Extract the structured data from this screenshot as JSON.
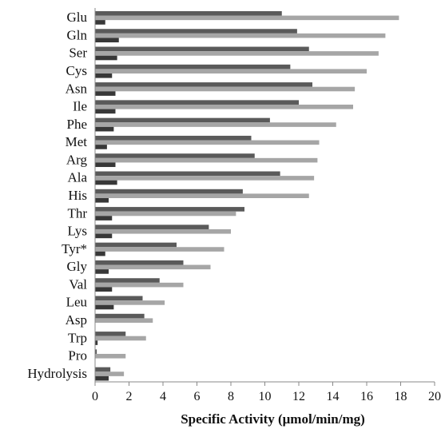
{
  "chart_data": {
    "type": "bar",
    "orientation": "horizontal",
    "categories": [
      "Glu",
      "Gln",
      "Ser",
      "Cys",
      "Asn",
      "Ile",
      "Phe",
      "Met",
      "Arg",
      "Ala",
      "His",
      "Thr",
      "Lys",
      "Tyr*",
      "Gly",
      "Val",
      "Leu",
      "Asp",
      "Trp",
      "Pro",
      "Hydrolysis"
    ],
    "series": [
      {
        "color": "#5a5a5a",
        "values": [
          11.0,
          11.9,
          12.6,
          11.5,
          12.8,
          12.0,
          10.3,
          9.2,
          9.4,
          10.9,
          8.7,
          8.8,
          6.7,
          4.8,
          5.2,
          3.8,
          2.8,
          2.9,
          1.8,
          0.1,
          0.9
        ]
      },
      {
        "color": "#a6a6a6",
        "values": [
          17.9,
          17.1,
          16.7,
          16.0,
          15.3,
          15.2,
          14.2,
          13.2,
          13.1,
          12.9,
          12.6,
          8.3,
          8.0,
          7.6,
          6.8,
          5.2,
          4.1,
          3.4,
          3.0,
          1.8,
          1.7
        ]
      },
      {
        "color": "#383838",
        "values": [
          0.6,
          1.4,
          1.3,
          1.0,
          1.2,
          1.2,
          1.1,
          0.7,
          1.2,
          1.3,
          0.8,
          1.0,
          1.0,
          0.6,
          0.8,
          1.0,
          1.1,
          0.0,
          0.15,
          0.0,
          0.8
        ]
      }
    ],
    "xlabel": "Specific Activity (μmol/min/mg)",
    "xlim": [
      0,
      20
    ],
    "xticks": [
      "0",
      "2",
      "4",
      "6",
      "8",
      "10",
      "12",
      "14",
      "16",
      "18",
      "20"
    ],
    "grid": false,
    "legend": "none",
    "colors": {
      "axis": "#888888",
      "text": "#111111"
    }
  }
}
